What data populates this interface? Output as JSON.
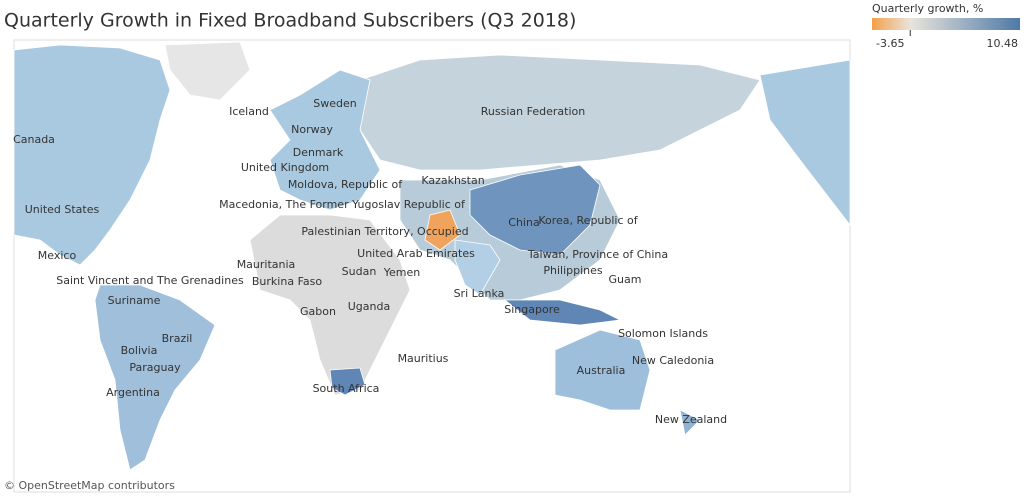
{
  "header": {
    "title": "Quarterly Growth in Fixed Broadband Subscribers (Q3 2018)"
  },
  "legend": {
    "title": "Quarterly growth, %",
    "range": [
      -3.65,
      10.48
    ]
  },
  "map": {
    "labels": [
      "Iceland",
      "Sweden",
      "Canada",
      "Norway",
      "Denmark",
      "United Kingdom",
      "Moldova, Republic of",
      "Kazakhstan",
      "United States",
      "Macedonia, The Former Yugoslav Republic of",
      "China",
      "Korea, Republic of",
      "Palestinian Territory, Occupied",
      "Mexico",
      "United Arab Emirates",
      "Taiwan, Province of China",
      "Mauritania",
      "Saint Vincent and The Grenadines",
      "Philippines",
      "Sudan",
      "Yemen",
      "Guam",
      "Burkina Faso",
      "Suriname",
      "Sri Lanka",
      "Gabon",
      "Uganda",
      "Singapore",
      "Solomon Islands",
      "Brazil",
      "Bolivia",
      "Mauritius",
      "New Caledonia",
      "Paraguay",
      "Australia",
      "Argentina",
      "South Africa",
      "New Zealand",
      "Russian Federation"
    ]
  },
  "attribution": "© OpenStreetMap contributors"
}
